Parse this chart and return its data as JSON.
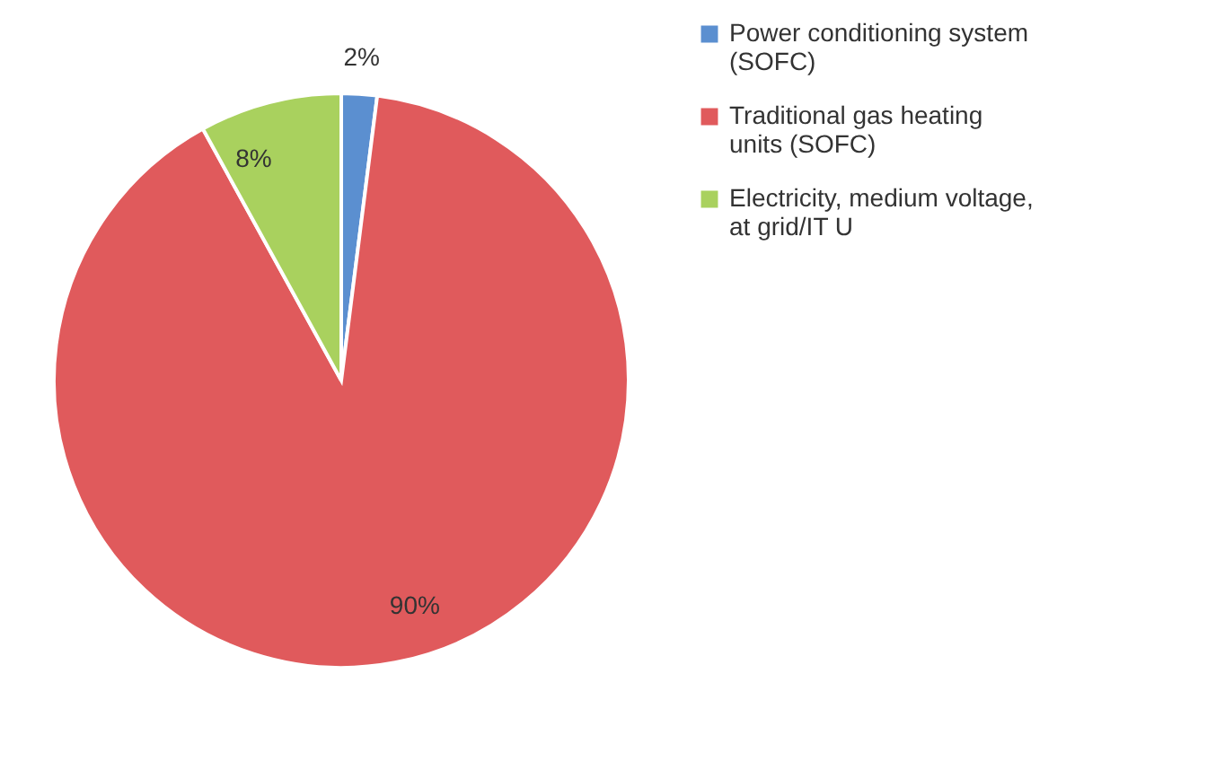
{
  "chart_data": {
    "type": "pie",
    "categories": [
      "Power conditioning system (SOFC)",
      "Traditional gas heating units (SOFC)",
      "Electricity, medium voltage, at grid/IT U"
    ],
    "values": [
      2,
      90,
      8
    ],
    "colors": [
      "#5b8fd0",
      "#e05a5c",
      "#a9d15e"
    ],
    "value_labels": [
      "2%",
      "90%",
      "8%"
    ],
    "legend": "right"
  }
}
